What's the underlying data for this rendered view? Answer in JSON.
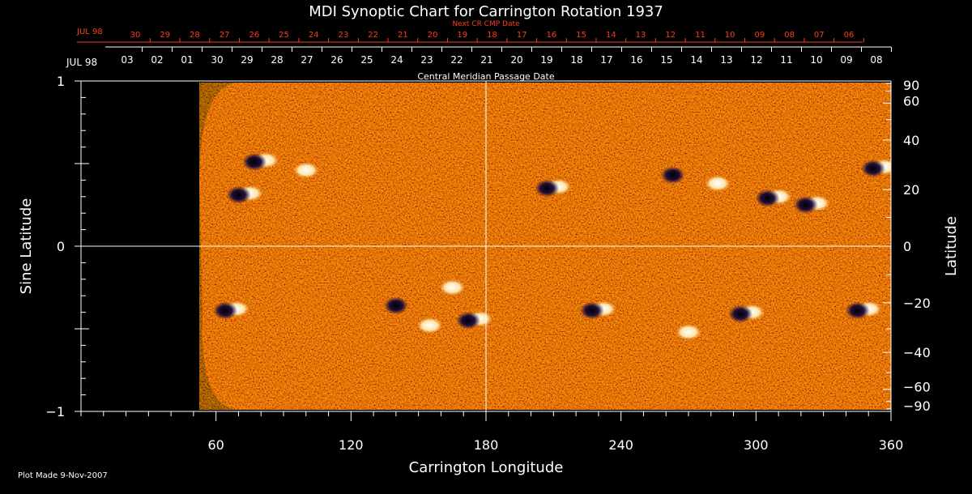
{
  "chart_data": {
    "type": "heatmap",
    "title": "MDI Synoptic Chart for Carrington Rotation 1937",
    "xlabel": "Carrington Longitude",
    "ylabel_left": "Sine Latitude",
    "ylabel_right": "Latitude",
    "xlim": [
      0,
      360
    ],
    "ylim": [
      -1,
      1
    ],
    "x_ticks": [
      60,
      120,
      180,
      240,
      300,
      360
    ],
    "x_minor_step": 10,
    "y_left_ticks": [
      {
        "value": 1,
        "label": "1"
      },
      {
        "value": 0,
        "label": "0"
      },
      {
        "value": -1,
        "label": "−1"
      }
    ],
    "y_right_ticks": [
      90,
      60,
      40,
      20,
      0,
      -20,
      -40,
      -60,
      -90
    ],
    "y_right_tick_labels": [
      "90",
      "60",
      "40",
      "20",
      "0",
      "−20",
      "−40",
      "−60",
      "−90"
    ],
    "grid": "crosshair at 180° longitude and 0 latitude",
    "top_axis_label": "Central Meridian Passage Date",
    "top_axis_month": "JUL 98",
    "top_axis_dates": [
      "03",
      "02",
      "01",
      "30",
      "29",
      "28",
      "27",
      "26",
      "25",
      "24",
      "23",
      "22",
      "21",
      "20",
      "19",
      "18",
      "17",
      "16",
      "15",
      "14",
      "13",
      "12",
      "11",
      "10",
      "09",
      "08"
    ],
    "next_cr_label": "Next CR CMP Date",
    "next_cr_month": "JUL 98",
    "next_cr_dates": [
      "30",
      "29",
      "28",
      "27",
      "26",
      "25",
      "24",
      "23",
      "22",
      "21",
      "20",
      "19",
      "18",
      "17",
      "16",
      "15",
      "14",
      "13",
      "12",
      "11",
      "10",
      "09",
      "08",
      "07",
      "06"
    ],
    "no_data_region_longitude": [
      0,
      54
    ],
    "colormap": [
      "#000000",
      "#1a0a4a",
      "#8b1a00",
      "#ff5a1e",
      "#ffb070",
      "#ffffff"
    ],
    "active_regions": [
      {
        "lon": 73,
        "sinlat": 0.32,
        "polarity": "mixed"
      },
      {
        "lon": 80,
        "sinlat": 0.52,
        "polarity": "mixed"
      },
      {
        "lon": 100,
        "sinlat": 0.46,
        "polarity": "positive"
      },
      {
        "lon": 67,
        "sinlat": -0.38,
        "polarity": "mixed"
      },
      {
        "lon": 140,
        "sinlat": -0.35,
        "polarity": "negative"
      },
      {
        "lon": 165,
        "sinlat": -0.25,
        "polarity": "positive"
      },
      {
        "lon": 175,
        "sinlat": -0.44,
        "polarity": "mixed"
      },
      {
        "lon": 210,
        "sinlat": 0.36,
        "polarity": "mixed"
      },
      {
        "lon": 230,
        "sinlat": -0.38,
        "polarity": "mixed"
      },
      {
        "lon": 263,
        "sinlat": 0.44,
        "polarity": "negative"
      },
      {
        "lon": 283,
        "sinlat": 0.38,
        "polarity": "positive"
      },
      {
        "lon": 296,
        "sinlat": -0.4,
        "polarity": "mixed"
      },
      {
        "lon": 308,
        "sinlat": 0.3,
        "polarity": "mixed"
      },
      {
        "lon": 325,
        "sinlat": 0.26,
        "polarity": "mixed"
      },
      {
        "lon": 348,
        "sinlat": -0.38,
        "polarity": "mixed"
      },
      {
        "lon": 355,
        "sinlat": 0.48,
        "polarity": "mixed"
      },
      {
        "lon": 155,
        "sinlat": -0.48,
        "polarity": "positive"
      },
      {
        "lon": 270,
        "sinlat": -0.52,
        "polarity": "positive"
      }
    ]
  },
  "footer": {
    "plot_made": "Plot Made  9-Nov-2007"
  }
}
